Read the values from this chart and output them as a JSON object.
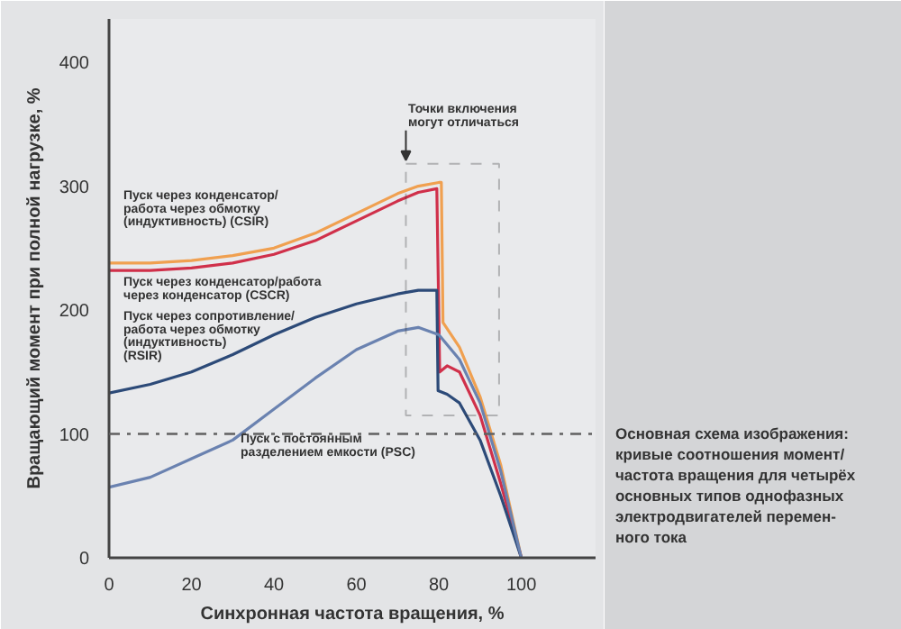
{
  "chart_data": {
    "type": "line",
    "xlabel": "Синхронная частота вращения, %",
    "ylabel": "Вращающий момент при полной нагрузке, %",
    "xlim": [
      0,
      118
    ],
    "ylim": [
      0,
      435
    ],
    "xticks": [
      0,
      20,
      40,
      60,
      80,
      100
    ],
    "yticks": [
      0,
      100,
      200,
      300,
      400
    ],
    "grid": false,
    "marker": "none",
    "line_style": "solid",
    "series": [
      {
        "color": "#f0a050",
        "x": [
          0,
          10,
          20,
          30,
          40,
          50,
          60,
          70,
          75,
          80,
          80.6,
          81,
          85,
          90,
          95,
          100
        ],
        "values": [
          238,
          238,
          240,
          244,
          250,
          262,
          278,
          294,
          300,
          303,
          303,
          190,
          170,
          130,
          75,
          0
        ]
      },
      {
        "color": "#d0304a",
        "x": [
          0,
          10,
          20,
          30,
          40,
          50,
          60,
          70,
          75,
          79.5,
          80.2,
          82,
          85,
          90,
          95,
          100
        ],
        "values": [
          232,
          232,
          234,
          238,
          245,
          256,
          272,
          288,
          295,
          298,
          150,
          155,
          150,
          115,
          60,
          0
        ]
      },
      {
        "color": "#2c4a78",
        "x": [
          0,
          10,
          20,
          30,
          40,
          50,
          60,
          70,
          75,
          79.5,
          79.8,
          82,
          85,
          90,
          95,
          100
        ],
        "values": [
          133,
          140,
          150,
          164,
          180,
          194,
          205,
          213,
          216,
          216,
          135,
          132,
          125,
          95,
          50,
          0
        ]
      },
      {
        "color": "#6a82b0",
        "x": [
          0,
          10,
          20,
          30,
          40,
          50,
          60,
          70,
          75,
          80,
          85,
          90,
          95,
          100
        ],
        "values": [
          57,
          65,
          80,
          95,
          120,
          145,
          168,
          183,
          186,
          180,
          160,
          125,
          70,
          0
        ]
      }
    ],
    "ref_lines": [
      {
        "axis": "y",
        "value": 100,
        "color": "#606060",
        "line_style": "dashdot"
      }
    ],
    "annotations": [
      "Пуск через конденсатор/\nработа через обмотку\n(индуктивность) (CSIR)",
      "Пуск через конденсатор/работа\nчерез конденсатор (CSCR)",
      "Пуск через сопротивление/\nработа через обмотку\n(индуктивность)\n(RSIR)",
      "Пуск с постоянным\nразделением емкости (PSC)",
      "Точки включения\nмогут отличаться",
      "Основная схема изображения:\nкривые соотношения момент/\nчастота вращения для четырёх\nосновных типов однофазных\nэлектродвигателей перемен-\nного тока"
    ]
  }
}
